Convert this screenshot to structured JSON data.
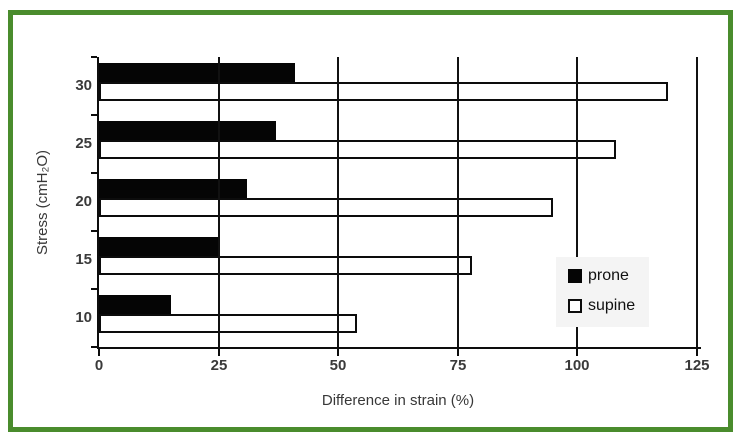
{
  "frame": {
    "border_color": "#4a8c2d"
  },
  "chart_data": {
    "type": "bar",
    "orientation": "horizontal",
    "title": "",
    "xlabel": "Difference in strain (%)",
    "ylabel": "Stress (cmH₂O)",
    "categories": [
      "30",
      "25",
      "20",
      "15",
      "10"
    ],
    "series": [
      {
        "name": "prone",
        "values": [
          41,
          37,
          31,
          25,
          15
        ],
        "fill": "#000000",
        "outline": "#000000"
      },
      {
        "name": "supine",
        "values": [
          119,
          108,
          95,
          78,
          54
        ],
        "fill": "#ffffff",
        "outline": "#000000"
      }
    ],
    "xlim": [
      0,
      125
    ],
    "xticks": [
      "0",
      "25",
      "50",
      "75",
      "100",
      "125"
    ],
    "grid": "vertical",
    "legend_position": "inside-right",
    "legend_items": [
      "prone",
      "supine"
    ]
  }
}
